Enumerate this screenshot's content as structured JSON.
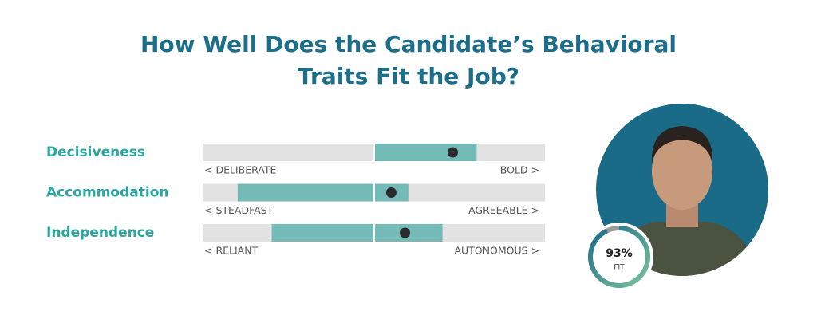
{
  "header": {
    "title_lines": [
      "How Well Does the Candidate’s Behavioral",
      "Traits Fit the Job?"
    ]
  },
  "scale": {
    "min": 0,
    "max": 100,
    "midpoint": 50
  },
  "traits": [
    {
      "name": "Decisiveness",
      "low_label": "< DELIBERATE",
      "high_label": "BOLD >",
      "range": [
        50,
        80
      ],
      "score": 73
    },
    {
      "name": "Accommodation",
      "low_label": "< STEADFAST",
      "high_label": "AGREEABLE >",
      "range": [
        10,
        60
      ],
      "score": 55
    },
    {
      "name": "Independence",
      "low_label": "< RELIANT",
      "high_label": "AUTONOMOUS >",
      "range": [
        20,
        70
      ],
      "score": 59
    }
  ],
  "fit": {
    "value": 93,
    "value_label": "93%",
    "label": "FIT"
  }
}
